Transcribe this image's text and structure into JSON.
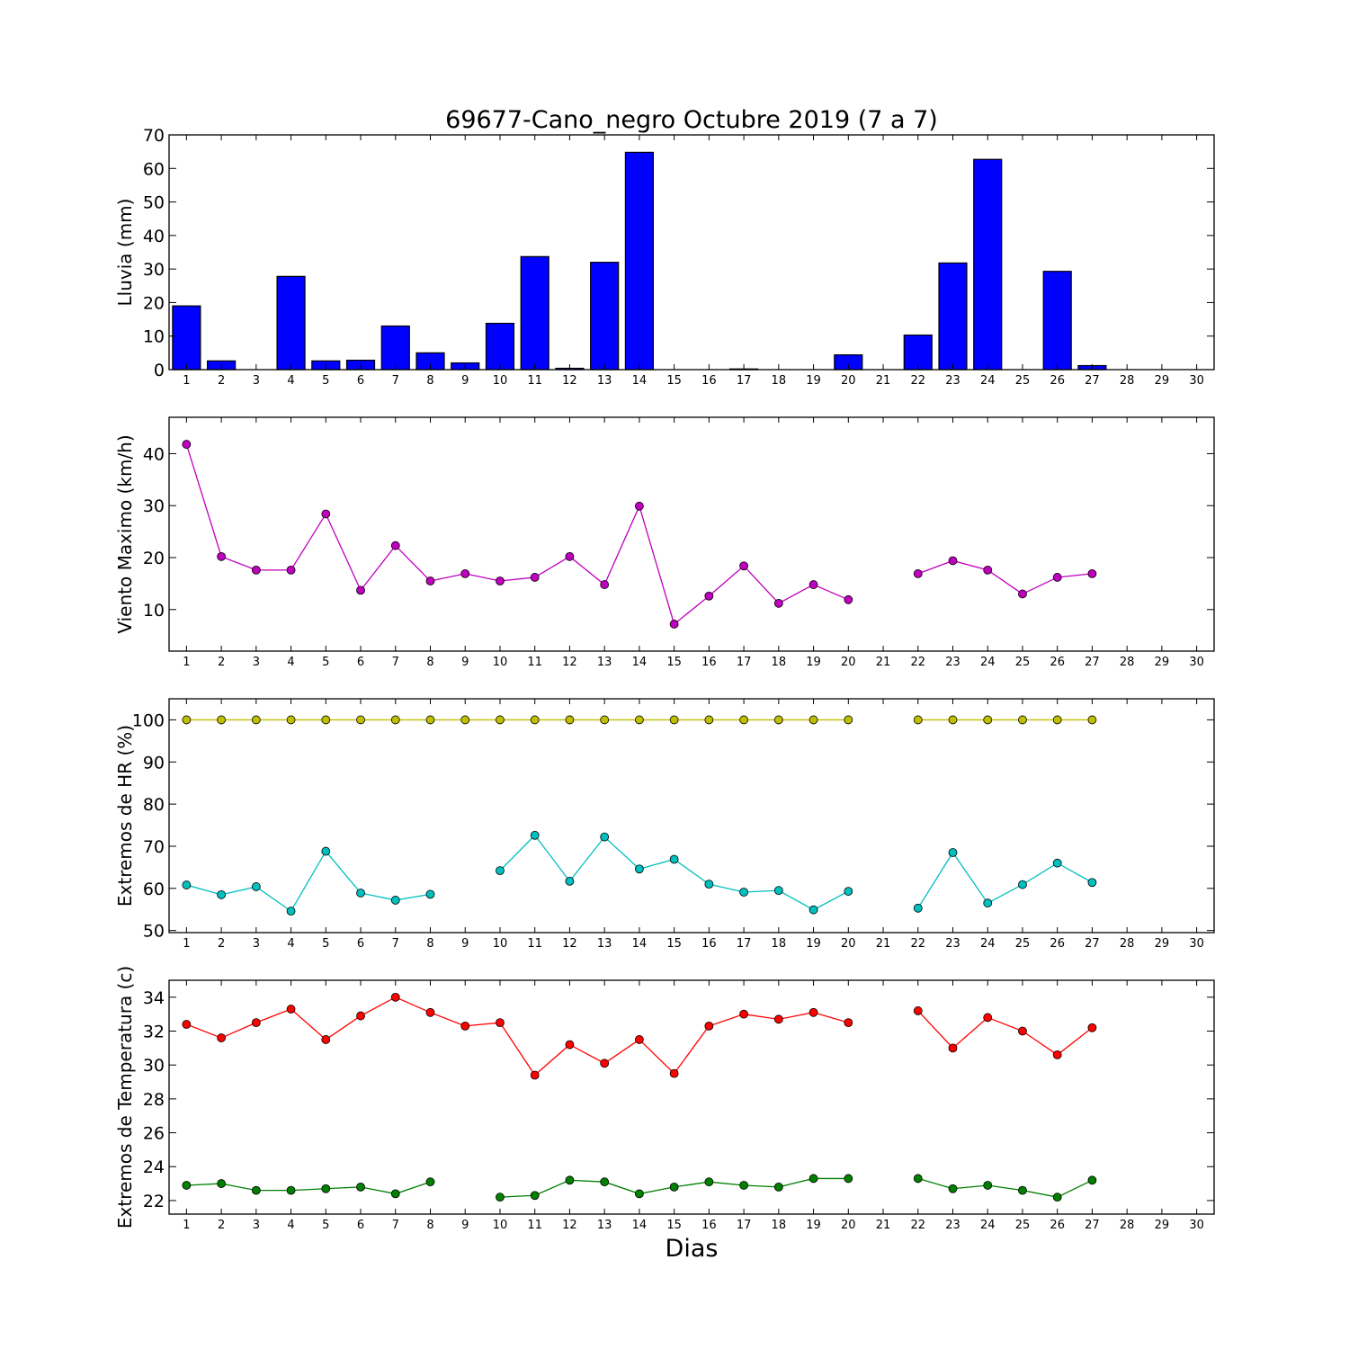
{
  "figure": {
    "title": "69677-Cano_negro Octubre 2019  (7 a 7)",
    "xlabel": "Dias"
  },
  "chart_data": [
    {
      "type": "bar",
      "ylabel": "Lluvia (mm)",
      "ylim": [
        0,
        70
      ],
      "yticks": [
        0,
        10,
        20,
        30,
        40,
        50,
        60,
        70
      ],
      "xlim": [
        0.5,
        30.5
      ],
      "x": [
        1,
        2,
        3,
        4,
        5,
        6,
        7,
        8,
        9,
        10,
        11,
        12,
        13,
        14,
        15,
        16,
        17,
        18,
        19,
        20,
        21,
        22,
        23,
        24,
        25,
        26,
        27,
        28,
        29,
        30
      ],
      "values": [
        19,
        2.6,
        0,
        27.8,
        2.6,
        2.8,
        13,
        5,
        2,
        13.8,
        33.7,
        0.4,
        32,
        64.8,
        0,
        0,
        0.2,
        0,
        0,
        4.4,
        null,
        10.3,
        31.8,
        62.7,
        0,
        29.3,
        1.2,
        null,
        null,
        null
      ],
      "color": "#0000ff",
      "grid": false
    },
    {
      "type": "line",
      "ylabel": "Viento Maximo (km/h)",
      "ylim": [
        2,
        47
      ],
      "yticks": [
        10,
        20,
        30,
        40
      ],
      "xlim": [
        0.5,
        30.5
      ],
      "x": [
        1,
        2,
        3,
        4,
        5,
        6,
        7,
        8,
        9,
        10,
        11,
        12,
        13,
        14,
        15,
        16,
        17,
        18,
        19,
        20,
        21,
        22,
        23,
        24,
        25,
        26,
        27,
        28,
        29,
        30
      ],
      "series": [
        {
          "color": "#bf00bf",
          "values": [
            41.8,
            20.2,
            17.6,
            17.6,
            28.4,
            13.7,
            22.3,
            15.5,
            16.9,
            15.5,
            16.2,
            20.2,
            14.8,
            29.9,
            7.2,
            12.6,
            18.4,
            11.2,
            14.8,
            11.9,
            null,
            16.9,
            19.4,
            17.6,
            13,
            16.2,
            16.9,
            null,
            null,
            null
          ]
        }
      ],
      "grid": false
    },
    {
      "type": "line",
      "ylabel": "Extremos de HR (%)",
      "ylim": [
        49.5,
        105
      ],
      "yticks": [
        50,
        60,
        70,
        80,
        90,
        100
      ],
      "xlim": [
        0.5,
        30.5
      ],
      "x": [
        1,
        2,
        3,
        4,
        5,
        6,
        7,
        8,
        9,
        10,
        11,
        12,
        13,
        14,
        15,
        16,
        17,
        18,
        19,
        20,
        21,
        22,
        23,
        24,
        25,
        26,
        27,
        28,
        29,
        30
      ],
      "series": [
        {
          "color": "#bfbf00",
          "values": [
            100,
            100,
            100,
            100,
            100,
            100,
            100,
            100,
            100,
            100,
            100,
            100,
            100,
            100,
            100,
            100,
            100,
            100,
            100,
            100,
            null,
            100,
            100,
            100,
            100,
            100,
            100,
            null,
            null,
            null
          ]
        },
        {
          "color": "#00bfbf",
          "values": [
            60.8,
            58.5,
            60.4,
            54.6,
            68.8,
            58.9,
            57.2,
            58.6,
            null,
            64.2,
            72.6,
            61.7,
            72.2,
            64.6,
            66.9,
            61,
            59.1,
            59.5,
            54.9,
            59.3,
            null,
            55.3,
            68.5,
            56.5,
            60.9,
            66,
            61.4,
            null,
            null,
            null
          ]
        }
      ],
      "grid": false
    },
    {
      "type": "line",
      "ylabel": "Extremos de Temperatura (c)",
      "ylim": [
        21.2,
        35
      ],
      "yticks": [
        22,
        24,
        26,
        28,
        30,
        32,
        34
      ],
      "xlim": [
        0.5,
        30.5
      ],
      "x": [
        1,
        2,
        3,
        4,
        5,
        6,
        7,
        8,
        9,
        10,
        11,
        12,
        13,
        14,
        15,
        16,
        17,
        18,
        19,
        20,
        21,
        22,
        23,
        24,
        25,
        26,
        27,
        28,
        29,
        30
      ],
      "series": [
        {
          "color": "#ff0000",
          "values": [
            32.4,
            31.6,
            32.5,
            33.3,
            31.5,
            32.9,
            34,
            33.1,
            32.3,
            32.5,
            29.4,
            31.2,
            30.1,
            31.5,
            29.5,
            32.3,
            33,
            32.7,
            33.1,
            32.5,
            null,
            33.2,
            31,
            32.8,
            32,
            30.6,
            32.2,
            null,
            null,
            null
          ]
        },
        {
          "color": "#007f00",
          "values": [
            22.9,
            23,
            22.6,
            22.6,
            22.7,
            22.8,
            22.4,
            23.1,
            null,
            22.2,
            22.3,
            23.2,
            23.1,
            22.4,
            22.8,
            23.1,
            22.9,
            22.8,
            23.3,
            23.3,
            null,
            23.3,
            22.7,
            22.9,
            22.6,
            22.2,
            23.2,
            null,
            null,
            null
          ]
        }
      ],
      "grid": false
    }
  ]
}
